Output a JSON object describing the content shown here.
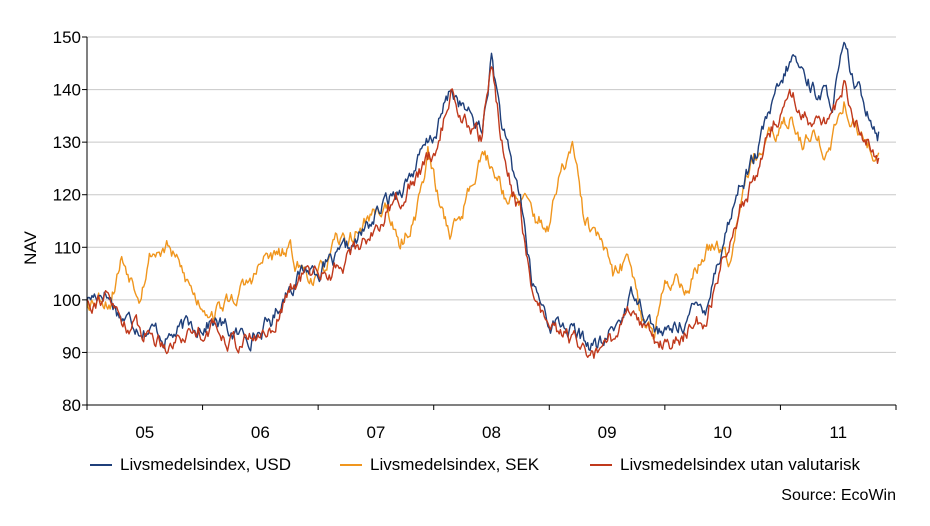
{
  "chart_data": {
    "type": "line",
    "title": "",
    "xlabel": "",
    "ylabel": "NAV",
    "ylim": [
      80,
      150
    ],
    "yticks": [
      80,
      90,
      100,
      110,
      120,
      130,
      140,
      150
    ],
    "x_range": [
      2005.0,
      2012.0
    ],
    "x_ticks": [
      {
        "label": "05",
        "center": 2005.5
      },
      {
        "label": "06",
        "center": 2006.5
      },
      {
        "label": "07",
        "center": 2007.5
      },
      {
        "label": "08",
        "center": 2008.5
      },
      {
        "label": "09",
        "center": 2009.5
      },
      {
        "label": "10",
        "center": 2010.5
      },
      {
        "label": "11",
        "center": 2011.5
      }
    ],
    "grid": true,
    "legend_position": "bottom",
    "source": "Source: EcoWin",
    "series": [
      {
        "name": "Livsmedelsindex, USD",
        "color": "#1f3f7a",
        "x": [
          2005.0,
          2005.15,
          2005.3,
          2005.5,
          2005.7,
          2005.9,
          2006.1,
          2006.3,
          2006.5,
          2006.6,
          2006.75,
          2006.9,
          2007.0,
          2007.15,
          2007.3,
          2007.5,
          2007.65,
          2007.8,
          2008.0,
          2008.15,
          2008.3,
          2008.42,
          2008.5,
          2008.6,
          2008.68,
          2008.75,
          2008.85,
          2009.0,
          2009.15,
          2009.3,
          2009.45,
          2009.6,
          2009.75,
          2009.9,
          2010.0,
          2010.2,
          2010.35,
          2010.5,
          2010.65,
          2010.8,
          2010.9,
          2011.0,
          2011.1,
          2011.2,
          2011.3,
          2011.45,
          2011.55,
          2011.65,
          2011.75,
          2011.85
        ],
        "values": [
          100,
          102,
          97,
          95,
          93,
          95,
          96,
          93,
          94,
          96,
          103,
          106,
          106,
          107,
          110,
          116,
          120,
          124,
          131,
          140,
          135,
          132,
          146,
          132,
          124,
          120,
          103,
          96,
          95,
          92,
          91,
          96,
          102,
          95,
          93,
          97,
          99,
          111,
          122,
          128,
          135,
          140,
          146,
          143,
          140,
          138,
          147,
          140,
          137,
          132
        ]
      },
      {
        "name": "Livsmedelsindex, SEK",
        "color": "#f0961e",
        "x": [
          2005.0,
          2005.1,
          2005.2,
          2005.3,
          2005.45,
          2005.55,
          2005.7,
          2005.85,
          2005.95,
          2006.1,
          2006.25,
          2006.4,
          2006.55,
          2006.65,
          2006.75,
          2006.85,
          2007.0,
          2007.15,
          2007.3,
          2007.45,
          2007.6,
          2007.7,
          2007.85,
          2007.95,
          2008.05,
          2008.15,
          2008.25,
          2008.4,
          2008.55,
          2008.65,
          2008.8,
          2008.9,
          2009.0,
          2009.1,
          2009.2,
          2009.3,
          2009.45,
          2009.55,
          2009.7,
          2009.8,
          2009.9,
          2010.0,
          2010.1,
          2010.2,
          2010.3,
          2010.45,
          2010.55,
          2010.7,
          2010.8,
          2010.9,
          2011.0,
          2011.1,
          2011.2,
          2011.3,
          2011.4,
          2011.55,
          2011.65,
          2011.75,
          2011.85
        ],
        "values": [
          100,
          101,
          100,
          108,
          102,
          109,
          110,
          104,
          100,
          98,
          100,
          103,
          108,
          108,
          109,
          106,
          104,
          110,
          112,
          116,
          118,
          109,
          117,
          128,
          118,
          113,
          117,
          128,
          124,
          119,
          118,
          115,
          114,
          124,
          129,
          115,
          111,
          104,
          108,
          98,
          93,
          102,
          105,
          102,
          107,
          112,
          108,
          125,
          128,
          130,
          132,
          135,
          130,
          132,
          128,
          137,
          133,
          128,
          128
        ]
      },
      {
        "name": "Livsmedelsindex utan valutarisk",
        "color": "#c0391c",
        "x": [
          2005.0,
          2005.15,
          2005.3,
          2005.5,
          2005.7,
          2005.9,
          2006.1,
          2006.3,
          2006.5,
          2006.6,
          2006.75,
          2006.9,
          2007.0,
          2007.15,
          2007.3,
          2007.5,
          2007.65,
          2007.8,
          2008.0,
          2008.15,
          2008.3,
          2008.42,
          2008.5,
          2008.6,
          2008.68,
          2008.75,
          2008.85,
          2009.0,
          2009.15,
          2009.3,
          2009.45,
          2009.6,
          2009.75,
          2009.9,
          2010.0,
          2010.2,
          2010.35,
          2010.5,
          2010.65,
          2010.8,
          2010.9,
          2011.0,
          2011.1,
          2011.2,
          2011.3,
          2011.45,
          2011.55,
          2011.65,
          2011.75,
          2011.85
        ],
        "values": [
          100,
          101,
          96,
          94,
          92,
          94,
          95,
          92,
          93,
          95,
          102,
          105,
          105,
          106,
          109,
          114,
          118,
          122,
          128,
          139,
          133,
          130,
          145,
          129,
          121,
          117,
          101,
          94,
          93,
          90,
          89,
          94,
          99,
          92,
          91,
          94,
          96,
          108,
          118,
          124,
          131,
          136,
          139,
          136,
          134,
          133,
          140,
          135,
          131,
          127
        ]
      }
    ]
  }
}
